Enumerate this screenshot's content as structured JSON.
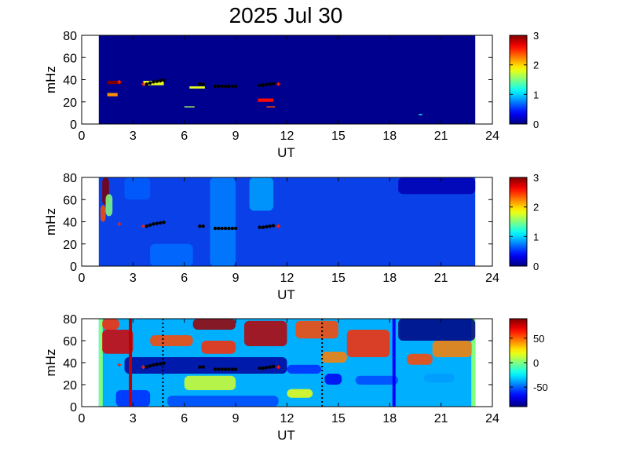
{
  "title": "2025 Jul 30",
  "colors": {
    "background_fill": "#00008f",
    "panel3_fill": "#00b0ff",
    "edge_strip": "#80ff80",
    "marker_black": "#000000",
    "marker_red": "#ff2000",
    "vline_red": "#c00000",
    "vline_blue": "#0000ff"
  },
  "chart_data": [
    {
      "type": "heatmap",
      "name": "panel-1",
      "xlabel": "UT",
      "ylabel": "mHz",
      "xlim": [
        0,
        24
      ],
      "ylim": [
        0,
        80
      ],
      "xticks": [
        "0",
        "3",
        "6",
        "9",
        "12",
        "15",
        "18",
        "21",
        "24"
      ],
      "yticks": [
        "0",
        "20",
        "40",
        "60",
        "80"
      ],
      "data_coverage_ut": [
        1,
        23
      ],
      "colorbar": {
        "min": 0,
        "max": 3,
        "ticks": [
          "0",
          "1",
          "2",
          "3"
        ]
      },
      "patches": [
        {
          "x": [
            1.5,
            2.3
          ],
          "y": [
            36,
            39
          ],
          "v": 3
        },
        {
          "x": [
            1.5,
            2.1
          ],
          "y": [
            25,
            28
          ],
          "v": 2.2
        },
        {
          "x": [
            3.6,
            4.8
          ],
          "y": [
            35,
            39
          ],
          "v": 1.8
        },
        {
          "x": [
            6.0,
            6.6
          ],
          "y": [
            15,
            16
          ],
          "v": 1.6
        },
        {
          "x": [
            6.3,
            7.2
          ],
          "y": [
            32,
            34
          ],
          "v": 1.8
        },
        {
          "x": [
            10.3,
            11.2
          ],
          "y": [
            20,
            23
          ],
          "v": 2.6
        },
        {
          "x": [
            10.8,
            11.3
          ],
          "y": [
            15,
            16
          ],
          "v": 2.4
        },
        {
          "x": [
            19.7,
            19.9
          ],
          "y": [
            8,
            9
          ],
          "v": 1.2
        }
      ]
    },
    {
      "type": "heatmap",
      "name": "panel-2",
      "xlabel": "UT",
      "ylabel": "mHz",
      "xlim": [
        0,
        24
      ],
      "ylim": [
        0,
        80
      ],
      "xticks": [
        "0",
        "3",
        "6",
        "9",
        "12",
        "15",
        "18",
        "21",
        "24"
      ],
      "yticks": [
        "0",
        "20",
        "40",
        "60",
        "80"
      ],
      "data_coverage_ut": [
        1,
        23
      ],
      "colorbar": {
        "min": 0,
        "max": 3,
        "ticks": [
          "0",
          "1",
          "2",
          "3"
        ]
      },
      "patches": [
        {
          "x": [
            1.2,
            1.6
          ],
          "y": [
            55,
            80
          ],
          "v": 3
        },
        {
          "x": [
            1.1,
            1.4
          ],
          "y": [
            40,
            55
          ],
          "v": 2.4
        },
        {
          "x": [
            1.4,
            1.8
          ],
          "y": [
            45,
            65
          ],
          "v": 1.5
        },
        {
          "x": [
            7.5,
            9.0
          ],
          "y": [
            0,
            80
          ],
          "v": 0.75
        },
        {
          "x": [
            9.8,
            11.2
          ],
          "y": [
            50,
            80
          ],
          "v": 0.85
        },
        {
          "x": [
            4.0,
            6.5
          ],
          "y": [
            0,
            20
          ],
          "v": 0.7
        },
        {
          "x": [
            2.5,
            4.0
          ],
          "y": [
            60,
            80
          ],
          "v": 0.65
        },
        {
          "x": [
            18.5,
            23.0
          ],
          "y": [
            65,
            80
          ],
          "v": 0.15
        }
      ]
    },
    {
      "type": "heatmap",
      "name": "panel-3",
      "xlabel": "UT",
      "ylabel": "mHz",
      "xlim": [
        0,
        24
      ],
      "ylim": [
        0,
        80
      ],
      "xticks": [
        "0",
        "3",
        "6",
        "9",
        "12",
        "15",
        "18",
        "21",
        "24"
      ],
      "yticks": [
        "0",
        "20",
        "40",
        "60",
        "80"
      ],
      "data_coverage_ut": [
        1,
        23
      ],
      "colorbar": {
        "min": -90,
        "max": 90,
        "ticks": [
          "50",
          "0",
          "-50"
        ]
      },
      "patches": [
        {
          "x": [
            1.2,
            3.0
          ],
          "y": [
            48,
            70
          ],
          "v": 75
        },
        {
          "x": [
            1.2,
            2.2
          ],
          "y": [
            70,
            80
          ],
          "v": 60
        },
        {
          "x": [
            4.0,
            6.5
          ],
          "y": [
            55,
            65
          ],
          "v": 55
        },
        {
          "x": [
            6.5,
            9.0
          ],
          "y": [
            70,
            80
          ],
          "v": 85
        },
        {
          "x": [
            7.0,
            9.0
          ],
          "y": [
            48,
            60
          ],
          "v": 60
        },
        {
          "x": [
            9.5,
            12.0
          ],
          "y": [
            55,
            78
          ],
          "v": 80
        },
        {
          "x": [
            12.5,
            15.0
          ],
          "y": [
            62,
            78
          ],
          "v": 55
        },
        {
          "x": [
            15.5,
            18.0
          ],
          "y": [
            45,
            70
          ],
          "v": 60
        },
        {
          "x": [
            14.0,
            15.5
          ],
          "y": [
            40,
            50
          ],
          "v": 45
        },
        {
          "x": [
            19.0,
            20.5
          ],
          "y": [
            38,
            48
          ],
          "v": 55
        },
        {
          "x": [
            20.5,
            22.8
          ],
          "y": [
            45,
            60
          ],
          "v": 45
        },
        {
          "x": [
            2.5,
            12.0
          ],
          "y": [
            30,
            45
          ],
          "v": -85
        },
        {
          "x": [
            2.0,
            4.0
          ],
          "y": [
            0,
            15
          ],
          "v": -60
        },
        {
          "x": [
            5.0,
            11.5
          ],
          "y": [
            0,
            10
          ],
          "v": -55
        },
        {
          "x": [
            12.0,
            14.0
          ],
          "y": [
            30,
            38
          ],
          "v": -60
        },
        {
          "x": [
            14.2,
            15.2
          ],
          "y": [
            20,
            30
          ],
          "v": -70
        },
        {
          "x": [
            16.0,
            18.5
          ],
          "y": [
            20,
            28
          ],
          "v": -55
        },
        {
          "x": [
            18.5,
            23.0
          ],
          "y": [
            60,
            80
          ],
          "v": -90
        },
        {
          "x": [
            20.0,
            21.8
          ],
          "y": [
            22,
            30
          ],
          "v": -40
        },
        {
          "x": [
            12.0,
            13.5
          ],
          "y": [
            8,
            16
          ],
          "v": 20
        },
        {
          "x": [
            6.0,
            9.0
          ],
          "y": [
            15,
            28
          ],
          "v": 15
        }
      ],
      "vlines": [
        {
          "x": 2.85,
          "color": "#c00000",
          "style": "solid"
        },
        {
          "x": 18.25,
          "color": "#0000ff",
          "style": "solid"
        },
        {
          "x": 4.75,
          "color": "#000000",
          "style": "dotted"
        },
        {
          "x": 14.05,
          "color": "#000000",
          "style": "dotted"
        }
      ]
    }
  ],
  "markers": {
    "black": [
      [
        3.8,
        36
      ],
      [
        4.0,
        37
      ],
      [
        4.2,
        38
      ],
      [
        4.4,
        38.5
      ],
      [
        4.6,
        39
      ],
      [
        4.8,
        39.5
      ],
      [
        6.9,
        36
      ],
      [
        7.1,
        36
      ],
      [
        7.8,
        34
      ],
      [
        8.0,
        34
      ],
      [
        8.2,
        34
      ],
      [
        8.4,
        34
      ],
      [
        8.6,
        34
      ],
      [
        8.8,
        34
      ],
      [
        9.0,
        34
      ],
      [
        10.4,
        35
      ],
      [
        10.6,
        35
      ],
      [
        10.8,
        35.5
      ],
      [
        11.0,
        36
      ],
      [
        11.2,
        36.5
      ]
    ],
    "red": [
      [
        2.2,
        38
      ],
      [
        3.6,
        36
      ],
      [
        11.5,
        36
      ]
    ]
  }
}
